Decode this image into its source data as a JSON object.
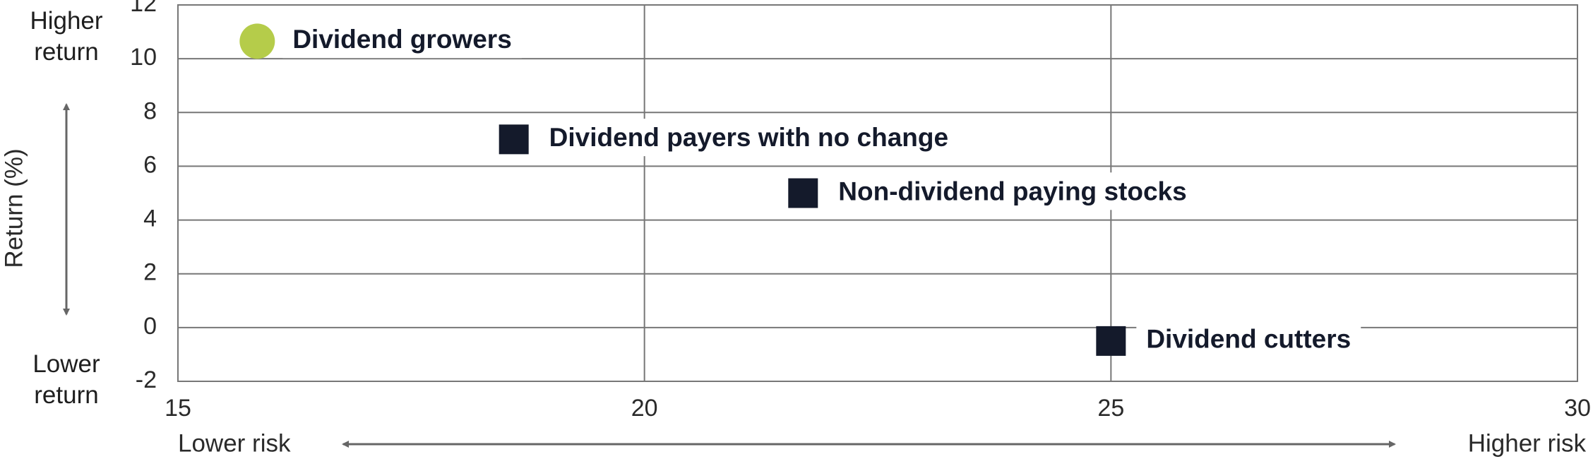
{
  "chart_data": {
    "type": "scatter",
    "series": [
      {
        "name": "Dividend growers",
        "color": "#b5cc4a",
        "marker": "circle",
        "x": [
          15.85
        ],
        "y": [
          10.65
        ]
      },
      {
        "name": "Dividend payers with no change",
        "color": "#141a2b",
        "marker": "square",
        "x": [
          18.6
        ],
        "y": [
          7.0
        ]
      },
      {
        "name": "Non-dividend paying stocks",
        "color": "#141a2b",
        "marker": "square",
        "x": [
          21.7
        ],
        "y": [
          5.0
        ]
      },
      {
        "name": "Dividend cutters",
        "color": "#141a2b",
        "marker": "square",
        "x": [
          25.0
        ],
        "y": [
          -0.5
        ]
      }
    ],
    "xlim": [
      15,
      30
    ],
    "xticks": [
      15,
      20,
      25,
      30
    ],
    "ylim": [
      -2,
      12
    ],
    "yticks": [
      -2,
      0,
      2,
      4,
      6,
      8,
      10,
      12
    ],
    "grid": true,
    "y_label": "Return (%)",
    "annotations": {
      "top_y": "Higher return",
      "bottom_y": "Lower return",
      "left_x": "Lower risk",
      "right_x": "Higher risk"
    }
  }
}
